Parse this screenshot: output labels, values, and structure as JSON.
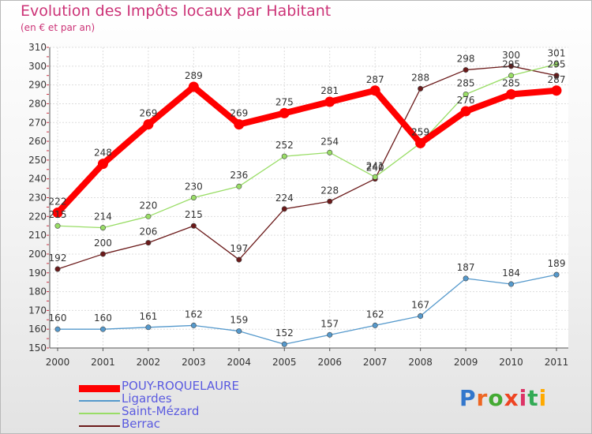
{
  "chart_data": {
    "type": "line",
    "title": "Evolution des Impôts locaux par Habitant",
    "subtitle": "(en € et par an)",
    "xlabel": "",
    "ylabel": "",
    "ylim": [
      150,
      310
    ],
    "y_ticks": [
      150,
      160,
      170,
      180,
      190,
      200,
      210,
      220,
      230,
      240,
      250,
      260,
      270,
      280,
      290,
      300,
      310
    ],
    "x": [
      "2000",
      "2001",
      "2002",
      "2003",
      "2004",
      "2005",
      "2006",
      "2007",
      "2008",
      "2009",
      "2010",
      "2011"
    ],
    "grid": true,
    "legend_position": "bottom-left",
    "series": [
      {
        "name": "Berrac",
        "color": "#6b1a1a",
        "values": [
          192,
          200,
          206,
          215,
          197,
          224,
          228,
          240,
          288,
          298,
          300,
          295
        ]
      },
      {
        "name": "Saint-Mézard",
        "color": "#99dd66",
        "values": [
          215,
          214,
          220,
          230,
          236,
          252,
          254,
          241,
          259,
          285,
          295,
          301
        ]
      },
      {
        "name": "Ligardes",
        "color": "#5599cc",
        "values": [
          160,
          160,
          161,
          162,
          159,
          152,
          157,
          162,
          167,
          187,
          184,
          189
        ]
      },
      {
        "name": "POUY-ROQUELAURE",
        "color": "#ff0000",
        "values": [
          222,
          248,
          269,
          289,
          269,
          275,
          281,
          287,
          259,
          276,
          285,
          287
        ]
      }
    ]
  },
  "legend": {
    "items": [
      {
        "label": "POUY-ROQUELAURE",
        "color": "#ff0000"
      },
      {
        "label": "Ligardes",
        "color": "#5599cc"
      },
      {
        "label": "Saint-Mézard",
        "color": "#99dd66"
      },
      {
        "label": "Berrac",
        "color": "#6b1a1a"
      }
    ]
  },
  "logo": {
    "letters": [
      {
        "char": "P",
        "color": "#3377cc"
      },
      {
        "char": "r",
        "color": "#ee6622"
      },
      {
        "char": "o",
        "color": "#44aa33"
      },
      {
        "char": "x",
        "color": "#ee4422"
      },
      {
        "char": "i",
        "color": "#dd3366"
      },
      {
        "char": "t",
        "color": "#33aa55"
      },
      {
        "char": "i",
        "color": "#ffaa00"
      }
    ]
  }
}
